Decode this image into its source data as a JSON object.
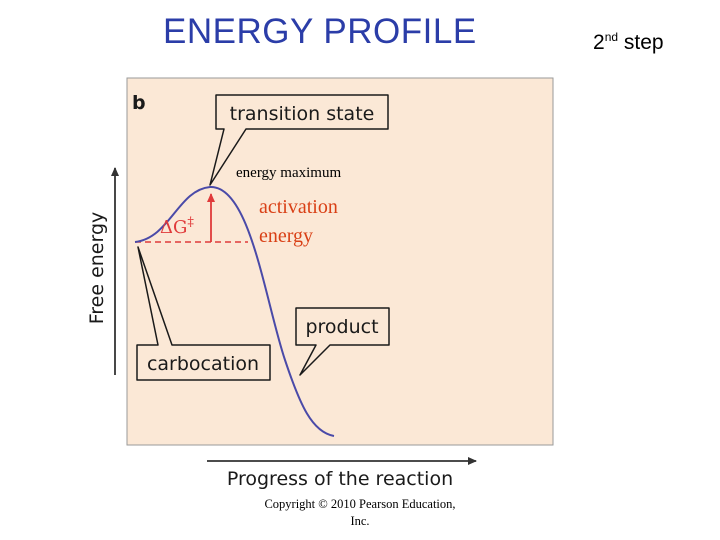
{
  "title": "ENERGY PROFILE",
  "step": {
    "prefix": "2",
    "superscript": "nd",
    "suffix": " step"
  },
  "diagram": {
    "panel_label": "b",
    "y_axis_label": "Free energy",
    "x_axis_label": "Progress of the reaction",
    "callouts": {
      "transition_state": "transition state",
      "product": "product",
      "carbocation": "carbocation"
    },
    "delta_g": {
      "symbol": "ΔG",
      "dagger": "‡"
    },
    "annotations": {
      "energy_maximum": "energy maximum",
      "activation_line1": "activation",
      "activation_line2": "energy"
    }
  },
  "copyright": {
    "line1": "Copyright © 2010 Pearson Education,",
    "line2": "Inc."
  },
  "colors": {
    "title": "#2b3da8",
    "panel_fill": "#fbe8d6",
    "curve": "#4a4aa8",
    "arrow_red": "#e03a3a",
    "annotation_red": "#d94016",
    "callout_border": "#1a1a1a",
    "callout_fill": "#fbe8d6"
  }
}
